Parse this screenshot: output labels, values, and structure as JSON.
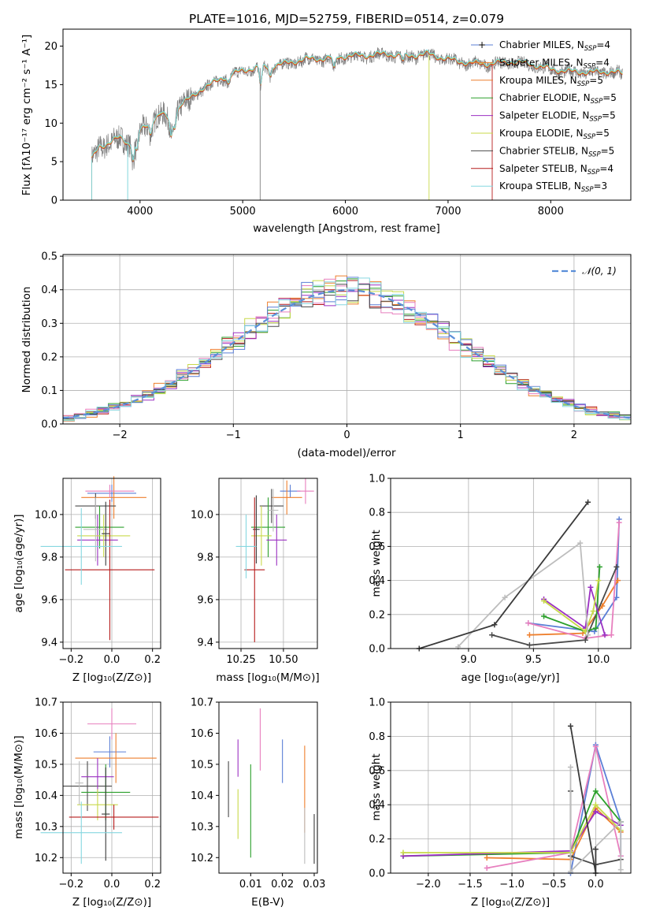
{
  "colors": {
    "series": [
      "#5b7fd6",
      "#ee7f2d",
      "#e77fbe",
      "#4a4a4a",
      "#2ca02c",
      "#9b30c2",
      "#c8d94a",
      "#bdbdbd",
      "#3a3a3a",
      "#b61b1b",
      "#86d7e0"
    ],
    "spectrum_data": "#7f7f7f",
    "spectrum_model": "#76d2d8",
    "gaussian": "#5b8fd9",
    "grid": "#b0b0b0"
  },
  "chart_data": [
    {
      "id": "spectrum",
      "type": "line",
      "title": "PLATE=1016, MJD=52759, FIBERID=0514, z=0.079",
      "xlabel": "wavelength [Angstrom, rest frame]",
      "ylabel": "Flux [fλ10⁻¹⁷ erg cm⁻² s⁻¹ A⁻¹]",
      "xlim": [
        3250,
        8780
      ],
      "ylim": [
        0,
        22.2
      ],
      "xticks": [
        4000,
        5000,
        6000,
        7000,
        8000
      ],
      "yticks": [
        0,
        5,
        10,
        15,
        20
      ],
      "grid": false,
      "legend_placement": "right",
      "legend": [
        {
          "text": "Chabrier MILES, N",
          "sub": "SSP",
          "tail": "=4"
        },
        {
          "text": "Salpeter MILES, N",
          "sub": "SSP",
          "tail": "=4"
        },
        {
          "text": "Kroupa MILES, N",
          "sub": "SSP",
          "tail": "=5"
        },
        {
          "text": "Chabrier ELODIE, N",
          "sub": "SSP",
          "tail": "=5"
        },
        {
          "text": "Salpeter ELODIE, N",
          "sub": "SSP",
          "tail": "=5"
        },
        {
          "text": "Kroupa ELODIE, N",
          "sub": "SSP",
          "tail": "=5"
        },
        {
          "text": "Chabrier STELIB, N",
          "sub": "SSP",
          "tail": "=5"
        },
        {
          "text": "Salpeter STELIB, N",
          "sub": "SSP",
          "tail": "=4"
        },
        {
          "text": "Kroupa STELIB, N",
          "sub": "SSP",
          "tail": "=3"
        }
      ],
      "continuum": {
        "x": [
          3530,
          3600,
          3700,
          3800,
          3900,
          4000,
          4100,
          4200,
          4300,
          4400,
          4500,
          4600,
          4700,
          4800,
          4900,
          5000,
          5200,
          5400,
          5600,
          5800,
          6000,
          6200,
          6400,
          6600,
          6800,
          7000,
          7200,
          7400,
          7600,
          7800,
          8000,
          8200,
          8400,
          8600,
          8700
        ],
        "y": [
          5.2,
          6.8,
          7.4,
          8.0,
          7.2,
          8.8,
          10.0,
          11.2,
          10.2,
          12.4,
          13.2,
          14.4,
          15.0,
          15.8,
          16.2,
          16.8,
          17.2,
          17.6,
          18.2,
          18.3,
          18.6,
          18.7,
          18.9,
          18.6,
          18.9,
          18.2,
          17.7,
          17.6,
          17.9,
          17.6,
          16.9,
          16.6,
          16.5,
          16.6,
          16.3
        ]
      }
    },
    {
      "id": "residuals",
      "type": "histogram",
      "xlabel": "(data-model)/error",
      "ylabel": "Normed distribution",
      "xlim": [
        -2.5,
        2.5
      ],
      "ylim": [
        0,
        0.505
      ],
      "xticks": [
        -2,
        -1,
        0,
        1,
        2
      ],
      "yticks": [
        0.0,
        0.1,
        0.2,
        0.3,
        0.4,
        0.5
      ],
      "grid": true,
      "legend_placement": "top-right",
      "gaussian_label": "𝒩(0, 1)",
      "bin_width": 0.1
    },
    {
      "id": "age-vs-Z",
      "type": "scatter",
      "xlabel": "Z [log₁₀(Z/Z⊙)]",
      "ylabel": "age  [log₁₀(age/yr)]",
      "xlim": [
        -0.24,
        0.24
      ],
      "ylim": [
        9.37,
        10.17
      ],
      "xticks": [
        -0.2,
        0.0,
        0.2
      ],
      "yticks": [
        9.4,
        9.6,
        9.8,
        10.0
      ],
      "grid": true,
      "points": [
        {
          "x": 0.0,
          "y": 10.1,
          "xe": 0.12,
          "ye": 0.04
        },
        {
          "x": 0.01,
          "y": 10.08,
          "xe": 0.16,
          "ye": 0.1
        },
        {
          "x": -0.01,
          "y": 10.11,
          "xe": 0.12,
          "ye": 0.03
        },
        {
          "x": -0.08,
          "y": 10.04,
          "xe": 0.1,
          "ye": 0.06
        },
        {
          "x": -0.06,
          "y": 9.94,
          "xe": 0.12,
          "ye": 0.1
        },
        {
          "x": -0.07,
          "y": 9.88,
          "xe": 0.1,
          "ye": 0.12
        },
        {
          "x": -0.04,
          "y": 9.9,
          "xe": 0.13,
          "ye": 0.1
        },
        {
          "x": -0.08,
          "y": 9.93,
          "xe": 0.06,
          "ye": 0.15
        },
        {
          "x": -0.03,
          "y": 9.91,
          "xe": 0.02,
          "ye": 0.15
        },
        {
          "x": -0.01,
          "y": 9.74,
          "xe": 0.22,
          "ye": 0.33
        },
        {
          "x": -0.15,
          "y": 9.85,
          "xe": 0.2,
          "ye": 0.18
        }
      ]
    },
    {
      "id": "age-vs-mass",
      "type": "scatter",
      "xlabel": "mass [log₁₀(M/M⊙)]",
      "ylabel": "",
      "xlim": [
        10.12,
        10.7
      ],
      "ylim": [
        9.37,
        10.17
      ],
      "xticks": [
        10.25,
        10.5
      ],
      "tick_labels": [
        "10.25",
        "10.50"
      ],
      "yticks": [
        9.4,
        9.6,
        9.8,
        10.0
      ],
      "grid": true,
      "points": [
        {
          "x": 10.54,
          "y": 10.11,
          "xe": 0.06,
          "ye": 0.03
        },
        {
          "x": 10.52,
          "y": 10.08,
          "xe": 0.09,
          "ye": 0.08
        },
        {
          "x": 10.63,
          "y": 10.11,
          "xe": 0.05,
          "ye": 0.06
        },
        {
          "x": 10.43,
          "y": 10.04,
          "xe": 0.07,
          "ye": 0.08
        },
        {
          "x": 10.41,
          "y": 9.94,
          "xe": 0.1,
          "ye": 0.14
        },
        {
          "x": 10.46,
          "y": 9.88,
          "xe": 0.06,
          "ye": 0.12
        },
        {
          "x": 10.37,
          "y": 9.9,
          "xe": 0.06,
          "ye": 0.14
        },
        {
          "x": 10.44,
          "y": 10.02,
          "xe": 0.03,
          "ye": 0.1
        },
        {
          "x": 10.34,
          "y": 9.93,
          "xe": 0.02,
          "ye": 0.16
        },
        {
          "x": 10.33,
          "y": 9.74,
          "xe": 0.06,
          "ye": 0.34
        },
        {
          "x": 10.28,
          "y": 9.85,
          "xe": 0.06,
          "ye": 0.15
        }
      ]
    },
    {
      "id": "weight-vs-age",
      "type": "line",
      "xlabel": "age  [log₁₀(age/yr)]",
      "ylabel": "mass weight",
      "xlim": [
        8.4,
        10.25
      ],
      "ylim": [
        0,
        1.0
      ],
      "xticks": [
        9.0,
        9.5,
        10.0
      ],
      "yticks": [
        0.0,
        0.2,
        0.4,
        0.6,
        0.8,
        1.0
      ],
      "grid": true,
      "series": [
        {
          "x": [
            9.46,
            9.97,
            10.14,
            10.16
          ],
          "y": [
            0.15,
            0.1,
            0.3,
            0.76
          ]
        },
        {
          "x": [
            9.47,
            9.88,
            10.03,
            10.15
          ],
          "y": [
            0.08,
            0.09,
            0.25,
            0.4
          ]
        },
        {
          "x": [
            9.46,
            9.9,
            10.1,
            10.16
          ],
          "y": [
            0.15,
            0.06,
            0.08,
            0.74
          ]
        },
        {
          "x": [
            9.18,
            9.47,
            9.9,
            10.14
          ],
          "y": [
            0.08,
            0.02,
            0.05,
            0.48
          ]
        },
        {
          "x": [
            9.58,
            9.9,
            9.98,
            10.01
          ],
          "y": [
            0.19,
            0.1,
            0.12,
            0.48
          ]
        },
        {
          "x": [
            9.58,
            9.9,
            9.94,
            10.05
          ],
          "y": [
            0.29,
            0.12,
            0.36,
            0.08
          ]
        },
        {
          "x": [
            9.58,
            9.9,
            9.96,
            10.0
          ],
          "y": [
            0.28,
            0.1,
            0.22,
            0.4
          ]
        },
        {
          "x": [
            8.92,
            9.28,
            9.86,
            9.92
          ],
          "y": [
            0.01,
            0.3,
            0.62,
            0.08
          ]
        },
        {
          "x": [
            8.62,
            9.2,
            9.92
          ],
          "y": [
            0.0,
            0.14,
            0.86
          ]
        }
      ]
    },
    {
      "id": "mass-vs-Z",
      "type": "scatter",
      "xlabel": "Z [log₁₀(Z/Z⊙)]",
      "ylabel": "mass [log₁₀(M/M⊙)]",
      "xlim": [
        -0.24,
        0.24
      ],
      "ylim": [
        10.15,
        10.7
      ],
      "xticks": [
        -0.2,
        0.0,
        0.2
      ],
      "yticks": [
        10.2,
        10.3,
        10.4,
        10.5,
        10.6,
        10.7
      ],
      "grid": true,
      "points": [
        {
          "x": -0.01,
          "y": 10.54,
          "xe": 0.08,
          "ye": 0.05
        },
        {
          "x": 0.02,
          "y": 10.52,
          "xe": 0.2,
          "ye": 0.08
        },
        {
          "x": 0.0,
          "y": 10.63,
          "xe": 0.12,
          "ye": 0.05
        },
        {
          "x": -0.12,
          "y": 10.43,
          "xe": 0.12,
          "ye": 0.08
        },
        {
          "x": -0.03,
          "y": 10.41,
          "xe": 0.12,
          "ye": 0.09
        },
        {
          "x": -0.07,
          "y": 10.46,
          "xe": 0.08,
          "ye": 0.06
        },
        {
          "x": -0.07,
          "y": 10.37,
          "xe": 0.1,
          "ye": 0.05
        },
        {
          "x": -0.16,
          "y": 10.44,
          "xe": 0.02,
          "ye": 0.07
        },
        {
          "x": -0.03,
          "y": 10.34,
          "xe": 0.02,
          "ye": 0.15
        },
        {
          "x": 0.01,
          "y": 10.33,
          "xe": 0.22,
          "ye": 0.04
        },
        {
          "x": -0.15,
          "y": 10.28,
          "xe": 0.2,
          "ye": 0.1
        }
      ]
    },
    {
      "id": "mass-vs-EBV",
      "type": "scatter",
      "xlabel": "E(B-V)",
      "ylabel": "",
      "xlim": [
        0.0,
        0.031
      ],
      "ylim": [
        10.15,
        10.7
      ],
      "xticks": [
        0.01,
        0.02,
        0.03
      ],
      "tick_labels": [
        "0.01",
        "0.02",
        "0.03"
      ],
      "yticks": [
        10.2,
        10.3,
        10.4,
        10.5,
        10.6,
        10.7
      ],
      "grid": false,
      "points": [
        {
          "x": 0.02,
          "y": 10.51,
          "ye": 0.07
        },
        {
          "x": 0.027,
          "y": 10.42,
          "ye": 0.14
        },
        {
          "x": 0.013,
          "y": 10.58,
          "ye": 0.1
        },
        {
          "x": 0.003,
          "y": 10.42,
          "ye": 0.09
        },
        {
          "x": 0.01,
          "y": 10.35,
          "ye": 0.15
        },
        {
          "x": 0.006,
          "y": 10.52,
          "ye": 0.06
        },
        {
          "x": 0.006,
          "y": 10.34,
          "ye": 0.08
        },
        {
          "x": 0.027,
          "y": 10.27,
          "ye": 0.09
        },
        {
          "x": 0.03,
          "y": 10.26,
          "ye": 0.08
        }
      ]
    },
    {
      "id": "weight-vs-Z",
      "type": "line",
      "xlabel": "Z [log₁₀(Z/Z⊙)]",
      "ylabel": "mass weight",
      "xlim": [
        -2.45,
        0.42
      ],
      "ylim": [
        0,
        1.0
      ],
      "xticks": [
        -2.0,
        -1.5,
        -1.0,
        -0.5,
        0.0
      ],
      "yticks": [
        0.0,
        0.2,
        0.4,
        0.6,
        0.8,
        1.0
      ],
      "grid": true,
      "series": [
        {
          "x": [
            -0.3,
            0.0,
            0.3,
            0.3
          ],
          "y": [
            0.0,
            0.75,
            0.3,
            0.1
          ]
        },
        {
          "x": [
            -1.3,
            -0.3,
            0.0,
            0.3
          ],
          "y": [
            0.09,
            0.08,
            0.38,
            0.24
          ]
        },
        {
          "x": [
            -1.3,
            -0.3,
            0.0,
            0.3
          ],
          "y": [
            0.03,
            0.12,
            0.74,
            0.1
          ]
        },
        {
          "x": [
            -0.3,
            -0.3,
            0.0,
            0.3
          ],
          "y": [
            0.48,
            0.1,
            0.05,
            0.08
          ]
        },
        {
          "x": [
            -2.3,
            -0.3,
            0.0,
            0.3
          ],
          "y": [
            0.1,
            0.12,
            0.48,
            0.3
          ]
        },
        {
          "x": [
            -2.3,
            -0.3,
            0.0,
            0.3
          ],
          "y": [
            0.1,
            0.13,
            0.36,
            0.28
          ]
        },
        {
          "x": [
            -2.3,
            -0.3,
            0.0,
            0.3
          ],
          "y": [
            0.12,
            0.12,
            0.4,
            0.25
          ]
        },
        {
          "x": [
            -0.3,
            -0.3,
            0.3,
            0.3
          ],
          "y": [
            0.62,
            0.01,
            0.3,
            0.02
          ]
        },
        {
          "x": [
            -0.3,
            0.0,
            0.0
          ],
          "y": [
            0.86,
            0.0,
            0.14
          ]
        }
      ]
    }
  ]
}
